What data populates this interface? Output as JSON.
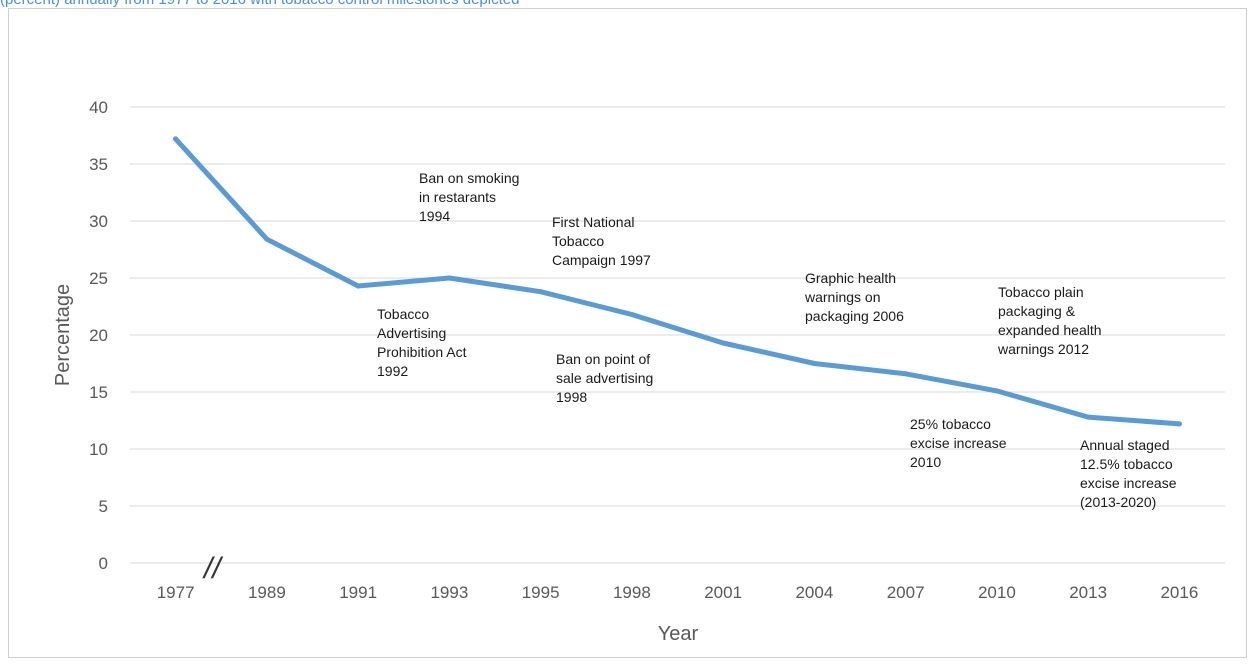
{
  "caption_fragment": "(percent) annually from 1977 to 2016 with tobacco control milestones depicted",
  "chart_data": {
    "type": "line",
    "title": "",
    "xlabel": "Year",
    "ylabel": "Percentage",
    "ylim": [
      0,
      40
    ],
    "y_ticks": [
      0,
      5,
      10,
      15,
      20,
      25,
      30,
      35,
      40
    ],
    "grid": true,
    "axis_break": "//",
    "categories": [
      "1977",
      "1989",
      "1991",
      "1993",
      "1995",
      "1998",
      "2001",
      "2004",
      "2007",
      "2010",
      "2013",
      "2016"
    ],
    "series": [
      {
        "values": [
          37.2,
          28.4,
          24.3,
          25.0,
          23.8,
          21.8,
          19.3,
          17.5,
          16.6,
          15.1,
          12.8,
          12.2
        ],
        "color": "#5b9bd5"
      }
    ],
    "annotations": [
      {
        "lines": [
          "Ban on smoking",
          "in restarants",
          "1994"
        ]
      },
      {
        "lines": [
          "First National",
          "Tobacco",
          "Campaign 1997"
        ]
      },
      {
        "lines": [
          "Tobacco",
          "Advertising",
          "Prohibition Act",
          "1992"
        ]
      },
      {
        "lines": [
          "Ban on point of",
          "sale advertising",
          "1998"
        ]
      },
      {
        "lines": [
          "Graphic health",
          "warnings on",
          "packaging 2006"
        ]
      },
      {
        "lines": [
          "Tobacco plain",
          "packaging &",
          "expanded health",
          "warnings 2012"
        ]
      },
      {
        "lines": [
          "25% tobacco",
          "excise increase",
          "2010"
        ]
      },
      {
        "lines": [
          "Annual staged",
          "12.5% tobacco",
          "excise increase",
          "(2013-2020)"
        ]
      }
    ]
  }
}
